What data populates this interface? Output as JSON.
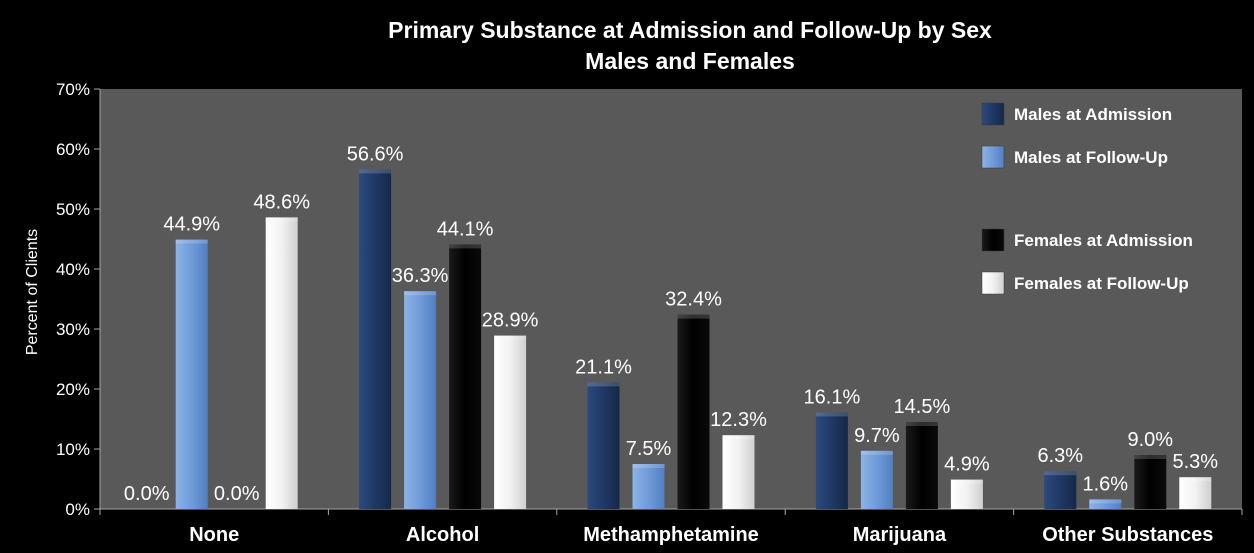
{
  "chart_data": {
    "type": "bar",
    "title": "Primary Substance at Admission and Follow-Up by Sex",
    "subtitle": "Males and Females",
    "ylabel": "Percent of Clients",
    "xlabel": "",
    "ylim": [
      0,
      70
    ],
    "yticks": [
      "0%",
      "10%",
      "20%",
      "30%",
      "40%",
      "50%",
      "60%",
      "70%"
    ],
    "categories": [
      "None",
      "Alcohol",
      "Methamphetamine",
      "Marijuana",
      "Other Substances"
    ],
    "legend_position": "top-right",
    "grid": false,
    "series": [
      {
        "name": "Males at Admission",
        "color": "#1f3864",
        "values": [
          0.0,
          56.6,
          21.1,
          16.1,
          6.3
        ],
        "labels": [
          "0.0%",
          "56.6%",
          "21.1%",
          "16.1%",
          "6.3%"
        ]
      },
      {
        "name": "Males at Follow-Up",
        "color": "#6f9bd8",
        "values": [
          44.9,
          36.3,
          7.5,
          9.7,
          1.6
        ],
        "labels": [
          "44.9%",
          "36.3%",
          "7.5%",
          "9.7%",
          "1.6%"
        ]
      },
      {
        "name": "Females at Admission",
        "color": "#000000",
        "values": [
          0.0,
          44.1,
          32.4,
          14.5,
          9.0
        ],
        "labels": [
          "0.0%",
          "44.1%",
          "32.4%",
          "14.5%",
          "9.0%"
        ]
      },
      {
        "name": "Females at Follow-Up",
        "color": "#f2f2f2",
        "values": [
          48.6,
          28.9,
          12.3,
          4.9,
          5.3
        ],
        "labels": [
          "48.6%",
          "28.9%",
          "12.3%",
          "4.9%",
          "5.3%"
        ]
      }
    ]
  }
}
